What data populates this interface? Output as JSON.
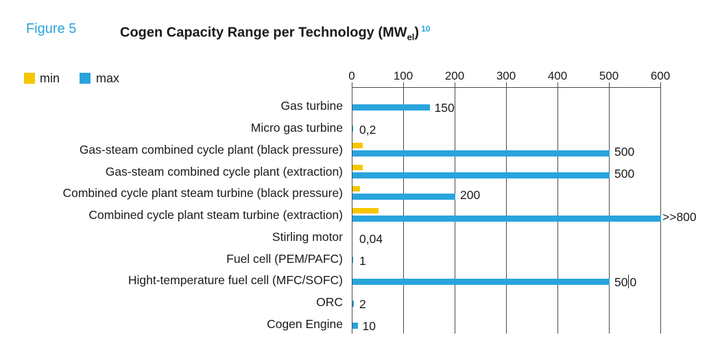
{
  "figure": {
    "label": "Figure 5",
    "title_main": "Cogen Capacity Range per Technology (MW",
    "title_subscript": "el",
    "title_suffix": ")",
    "footnote_marker": "10"
  },
  "legend": {
    "items": [
      {
        "name": "min",
        "label": "min",
        "color": "#F7C600"
      },
      {
        "name": "max",
        "label": "max",
        "color": "#29A4DC"
      }
    ]
  },
  "chart_data": {
    "type": "bar",
    "orientation": "horizontal",
    "title": "Cogen Capacity Range per Technology (MWel)",
    "unit": "MW electric",
    "value_axis": {
      "position": "top",
      "min": 0,
      "max": 600,
      "ticks": [
        0,
        100,
        200,
        300,
        400,
        500,
        600
      ],
      "grid": true
    },
    "series": [
      "min",
      "max"
    ],
    "rows": [
      {
        "label": "Gas turbine",
        "min": null,
        "max": 150,
        "max_label": "150"
      },
      {
        "label": "Micro gas turbine",
        "min": null,
        "max": 0.2,
        "max_label": "0,2"
      },
      {
        "label": "Gas-steam combined cycle plant (black pressure)",
        "min": 20,
        "max": 500,
        "max_label": "500"
      },
      {
        "label": "Gas-steam combined cycle plant (extraction)",
        "min": 20,
        "max": 500,
        "max_label": "500"
      },
      {
        "label": "Combined cycle plant steam turbine (black pressure)",
        "min": 15,
        "max": 200,
        "max_label": "200"
      },
      {
        "label": "Combined cycle plant steam turbine (extraction)",
        "min": 50,
        "max": 800,
        "max_label": ">>800",
        "max_bar_drawn_to": 600
      },
      {
        "label": "Stirling motor",
        "min": null,
        "max": 0.04,
        "max_label": "0,04"
      },
      {
        "label": "Fuel cell (PEM/PAFC)",
        "min": null,
        "max": 1,
        "max_label": "1"
      },
      {
        "label": "Hight-temperature fuel cell (MFC/SOFC)",
        "min": null,
        "max": 500,
        "max_label": "500",
        "text_cursor_pos": 2
      },
      {
        "label": "ORC",
        "min": null,
        "max": 2,
        "max_label": "2"
      },
      {
        "label": "Cogen Engine",
        "min": null,
        "max": 10,
        "max_label": "10"
      }
    ]
  },
  "colors": {
    "min_bar": "#F7C600",
    "max_bar": "#29A4DC",
    "accent_blue": "#29A4DC",
    "text": "#1A1A1A",
    "grid": "#4A4A4A"
  }
}
